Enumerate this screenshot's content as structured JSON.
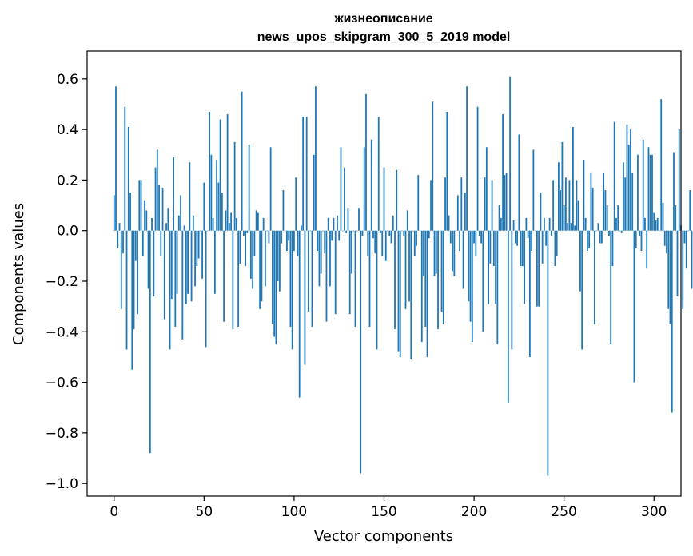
{
  "chart_data": {
    "type": "bar",
    "title_line1": "жизнеописание",
    "title_line2": "news_upos_skipgram_300_5_2019 model",
    "xlabel": "Vector components",
    "ylabel": "Components values",
    "xlim": [
      -15,
      315
    ],
    "ylim": [
      -1.05,
      0.71
    ],
    "xticks": [
      0,
      50,
      100,
      150,
      200,
      250,
      300
    ],
    "xtick_labels": [
      "0",
      "50",
      "100",
      "150",
      "200",
      "250",
      "300"
    ],
    "yticks": [
      0.6,
      0.4,
      0.2,
      0.0,
      -0.2,
      -0.4,
      -0.6,
      -0.8,
      -1.0
    ],
    "ytick_labels": [
      "0.6",
      "0.4",
      "0.2",
      "0.0",
      "−0.2",
      "−0.4",
      "−0.6",
      "−0.8",
      "−1.0"
    ],
    "bar_color": "#1f77b4",
    "grid": false,
    "legend": "none",
    "values": [
      0.14,
      0.57,
      -0.07,
      0.03,
      -0.31,
      -0.09,
      0.49,
      -0.47,
      0.41,
      0.15,
      -0.55,
      -0.39,
      -0.12,
      -0.33,
      0.2,
      0.2,
      -0.1,
      0.12,
      0.08,
      -0.23,
      -0.88,
      0.05,
      -0.26,
      0.25,
      0.32,
      0.18,
      -0.1,
      0.17,
      -0.35,
      0.03,
      0.09,
      -0.47,
      -0.27,
      0.29,
      -0.38,
      -0.25,
      0.06,
      0.14,
      -0.43,
      0.02,
      -0.29,
      -0.25,
      0.27,
      -0.28,
      0.06,
      -0.22,
      -0.14,
      -0.11,
      0.0,
      -0.19,
      0.19,
      -0.46,
      0.0,
      0.47,
      0.3,
      0.05,
      -0.25,
      0.28,
      0.19,
      0.44,
      0.15,
      -0.36,
      0.08,
      0.46,
      0.03,
      0.07,
      -0.39,
      0.35,
      0.05,
      -0.38,
      -0.13,
      0.55,
      -0.02,
      -0.14,
      -0.01,
      0.34,
      -0.19,
      -0.23,
      -0.1,
      0.08,
      0.07,
      -0.31,
      -0.28,
      0.05,
      -0.22,
      0.0,
      -0.05,
      0.33,
      -0.37,
      -0.42,
      -0.45,
      -0.2,
      -0.24,
      -0.05,
      0.16,
      0.0,
      -0.08,
      -0.04,
      -0.38,
      -0.47,
      -0.08,
      0.21,
      -0.1,
      -0.66,
      0.02,
      0.45,
      -0.53,
      0.45,
      -0.32,
      0.0,
      -0.38,
      0.3,
      0.57,
      -0.08,
      -0.22,
      -0.17,
      0.0,
      -0.09,
      -0.36,
      0.05,
      -0.22,
      -0.04,
      0.05,
      -0.33,
      0.06,
      -0.04,
      0.33,
      0.0,
      0.25,
      -0.01,
      0.09,
      -0.33,
      -0.17,
      0.0,
      -0.38,
      0.0,
      0.09,
      -0.96,
      -0.02,
      0.33,
      0.54,
      -0.1,
      -0.38,
      0.36,
      -0.03,
      -0.09,
      -0.47,
      0.45,
      -0.01,
      -0.1,
      0.25,
      -0.12,
      0.0,
      -0.02,
      -0.05,
      0.06,
      -0.39,
      0.24,
      -0.48,
      -0.5,
      0.0,
      -0.02,
      -0.31,
      0.08,
      -0.28,
      -0.51,
      0.0,
      -0.1,
      -0.06,
      0.22,
      0.0,
      -0.44,
      -0.18,
      -0.38,
      -0.5,
      -0.03,
      0.2,
      0.51,
      -0.18,
      -0.17,
      -0.39,
      0.0,
      -0.32,
      -0.37,
      0.21,
      0.47,
      0.06,
      -0.05,
      -0.16,
      -0.18,
      0.0,
      0.14,
      -0.08,
      0.21,
      -0.23,
      0.15,
      0.57,
      -0.28,
      -0.36,
      -0.44,
      -0.05,
      -0.1,
      0.49,
      -0.02,
      -0.05,
      -0.4,
      0.21,
      0.33,
      -0.29,
      -0.13,
      0.2,
      -0.14,
      -0.29,
      -0.45,
      0.1,
      0.05,
      0.46,
      0.22,
      0.23,
      -0.68,
      0.61,
      -0.47,
      0.04,
      -0.05,
      -0.06,
      0.38,
      -0.14,
      -0.14,
      -0.29,
      0.05,
      -0.03,
      -0.5,
      -0.08,
      0.32,
      0.0,
      -0.3,
      -0.3,
      0.15,
      -0.13,
      0.05,
      -0.06,
      -0.97,
      0.05,
      -0.02,
      0.2,
      -0.14,
      -0.1,
      0.27,
      0.16,
      0.35,
      0.1,
      0.21,
      0.03,
      0.2,
      0.03,
      0.41,
      0.02,
      0.2,
      0.12,
      -0.24,
      -0.47,
      0.28,
      0.05,
      -0.08,
      -0.07,
      0.23,
      0.17,
      -0.37,
      0.0,
      0.03,
      -0.05,
      -0.05,
      0.23,
      0.16,
      0.1,
      -0.02,
      -0.45,
      -0.14,
      0.43,
      0.05,
      0.1,
      0.0,
      -0.01,
      0.27,
      0.21,
      0.42,
      0.34,
      0.4,
      0.23,
      -0.6,
      -0.07,
      0.3,
      -0.02,
      -0.08,
      0.36,
      0.05,
      -0.15,
      0.33,
      0.3,
      0.3,
      0.07,
      0.04,
      0.05,
      0.0,
      0.52,
      0.11,
      -0.06,
      -0.09,
      -0.31,
      -0.37,
      -0.72,
      0.31,
      0.1,
      -0.26,
      0.4,
      0.02,
      -0.31,
      -0.05,
      -0.15,
      0.0,
      0.16,
      -0.23
    ]
  }
}
